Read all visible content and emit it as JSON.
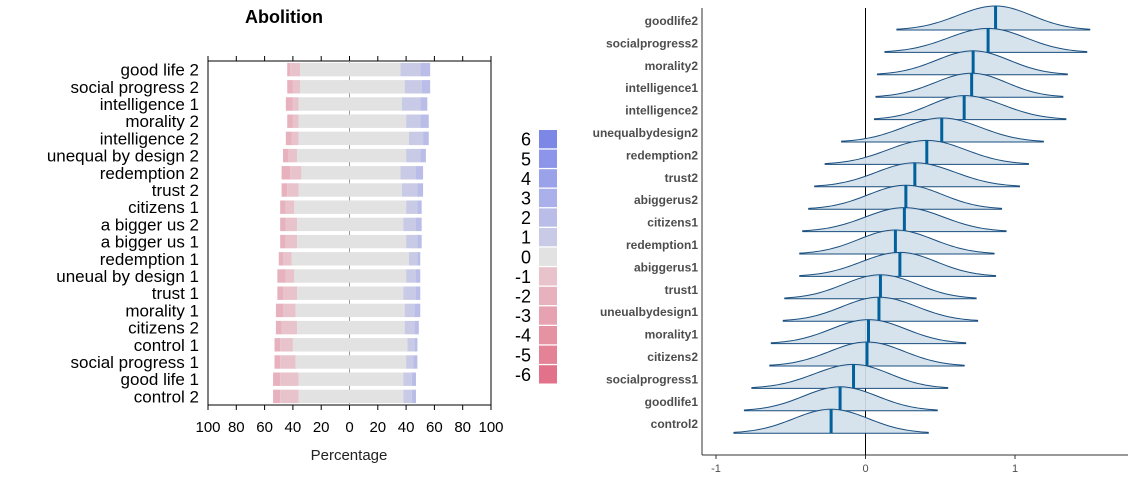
{
  "chart_data": [
    {
      "type": "bar",
      "subtype": "diverging-stacked-likert",
      "title": "Abolition",
      "xlabel": "Percentage",
      "xlim": [
        -100,
        100
      ],
      "x_tick_labels": [
        "100",
        "80",
        "60",
        "40",
        "20",
        "0",
        "20",
        "40",
        "60",
        "80",
        "100"
      ],
      "legend_position": "right",
      "legend_levels": [
        "6",
        "5",
        "4",
        "3",
        "2",
        "1",
        "0",
        "-1",
        "-2",
        "-3",
        "-4",
        "-5",
        "-6"
      ],
      "colors": {
        "neutral": "#e2e2e2",
        "pos": [
          "#c9cbe6",
          "#b9bde8",
          "#aab0ea",
          "#9aa2ea",
          "#8c95e9",
          "#7d88e6"
        ],
        "neg": [
          "#e8c3cb",
          "#e7b2bd",
          "#e6a2b0",
          "#e592a3",
          "#e48296",
          "#e2728a"
        ]
      },
      "categories": [
        "good life 2",
        "social progress 2",
        "intelligence 1",
        "morality 2",
        "intelligence 2",
        "unequal by design 2",
        "redemption 2",
        "trust 2",
        "citizens 1",
        "a bigger us 2",
        "a bigger us 1",
        "redemption 1",
        "uneual by design 1",
        "trust 1",
        "morality 1",
        "citizens 2",
        "control 1",
        "social progress 1",
        "good life 1",
        "control 2"
      ],
      "segments": [
        {
          "neg": [
            [
              -44,
              -42
            ],
            [
              -42,
              -35
            ]
          ],
          "neutral": [
            -35,
            36
          ],
          "pos": [
            [
              36,
              50
            ],
            [
              50,
              57
            ]
          ]
        },
        {
          "neg": [
            [
              -44,
              -40
            ],
            [
              -40,
              -35
            ]
          ],
          "neutral": [
            -35,
            39
          ],
          "pos": [
            [
              39,
              51
            ],
            [
              51,
              57
            ]
          ]
        },
        {
          "neg": [
            [
              -45,
              -40
            ],
            [
              -40,
              -36
            ]
          ],
          "neutral": [
            -36,
            37
          ],
          "pos": [
            [
              37,
              50
            ],
            [
              50,
              55
            ]
          ]
        },
        {
          "neg": [
            [
              -44,
              -40
            ],
            [
              -40,
              -36
            ]
          ],
          "neutral": [
            -36,
            40
          ],
          "pos": [
            [
              40,
              50
            ],
            [
              50,
              56
            ]
          ]
        },
        {
          "neg": [
            [
              -45,
              -41
            ],
            [
              -41,
              -36
            ]
          ],
          "neutral": [
            -36,
            42
          ],
          "pos": [
            [
              42,
              52
            ],
            [
              52,
              56
            ]
          ]
        },
        {
          "neg": [
            [
              -47,
              -43
            ],
            [
              -43,
              -37
            ]
          ],
          "neutral": [
            -37,
            40
          ],
          "pos": [
            [
              40,
              50
            ],
            [
              50,
              54
            ]
          ]
        },
        {
          "neg": [
            [
              -48,
              -42
            ],
            [
              -42,
              -34
            ]
          ],
          "neutral": [
            -34,
            36
          ],
          "pos": [
            [
              36,
              47
            ],
            [
              47,
              52
            ]
          ]
        },
        {
          "neg": [
            [
              -48,
              -44
            ],
            [
              -44,
              -36
            ]
          ],
          "neutral": [
            -36,
            37
          ],
          "pos": [
            [
              37,
              48
            ],
            [
              48,
              52
            ]
          ]
        },
        {
          "neg": [
            [
              -49,
              -45
            ],
            [
              -45,
              -39
            ]
          ],
          "neutral": [
            -39,
            40
          ],
          "pos": [
            [
              40,
              48
            ],
            [
              48,
              51
            ]
          ]
        },
        {
          "neg": [
            [
              -49,
              -45
            ],
            [
              -45,
              -37
            ]
          ],
          "neutral": [
            -37,
            38
          ],
          "pos": [
            [
              38,
              47
            ],
            [
              47,
              51
            ]
          ]
        },
        {
          "neg": [
            [
              -49,
              -45
            ],
            [
              -45,
              -37
            ]
          ],
          "neutral": [
            -37,
            40
          ],
          "pos": [
            [
              40,
              48
            ],
            [
              48,
              51
            ]
          ]
        },
        {
          "neg": [
            [
              -50,
              -47
            ],
            [
              -47,
              -41
            ]
          ],
          "neutral": [
            -41,
            42
          ],
          "pos": [
            [
              42,
              48
            ],
            [
              48,
              50
            ]
          ]
        },
        {
          "neg": [
            [
              -51,
              -45
            ],
            [
              -45,
              -39
            ]
          ],
          "neutral": [
            -39,
            40
          ],
          "pos": [
            [
              40,
              47
            ],
            [
              47,
              50
            ]
          ]
        },
        {
          "neg": [
            [
              -51,
              -47
            ],
            [
              -47,
              -37
            ]
          ],
          "neutral": [
            -37,
            38
          ],
          "pos": [
            [
              38,
              47
            ],
            [
              47,
              50
            ]
          ]
        },
        {
          "neg": [
            [
              -52,
              -47
            ],
            [
              -47,
              -38
            ]
          ],
          "neutral": [
            -38,
            39
          ],
          "pos": [
            [
              39,
              46
            ],
            [
              46,
              50
            ]
          ]
        },
        {
          "neg": [
            [
              -52,
              -48
            ],
            [
              -48,
              -37
            ]
          ],
          "neutral": [
            -37,
            39
          ],
          "pos": [
            [
              39,
              46
            ],
            [
              46,
              49
            ]
          ]
        },
        {
          "neg": [
            [
              -53,
              -49
            ],
            [
              -49,
              -40
            ]
          ],
          "neutral": [
            -40,
            41
          ],
          "pos": [
            [
              41,
              46
            ],
            [
              46,
              48
            ]
          ]
        },
        {
          "neg": [
            [
              -53,
              -49
            ],
            [
              -49,
              -38
            ]
          ],
          "neutral": [
            -38,
            40
          ],
          "pos": [
            [
              40,
              45
            ],
            [
              45,
              48
            ]
          ]
        },
        {
          "neg": [
            [
              -54,
              -49
            ],
            [
              -49,
              -36
            ]
          ],
          "neutral": [
            -36,
            38
          ],
          "pos": [
            [
              38,
              44
            ],
            [
              44,
              47
            ]
          ]
        },
        {
          "neg": [
            [
              -54,
              -49
            ],
            [
              -49,
              -36
            ]
          ],
          "neutral": [
            -36,
            38
          ],
          "pos": [
            [
              38,
              44
            ],
            [
              44,
              47
            ]
          ]
        }
      ]
    },
    {
      "type": "ridgeline",
      "xlim": [
        -1.1,
        1.75
      ],
      "x_ticks": [
        -1,
        0,
        1
      ],
      "x_tick_labels": [
        "-1",
        "0",
        "1"
      ],
      "vline_at": 0,
      "fill_color": "#d2e1ec",
      "line_color": "#1a4f7f",
      "median_color": "#00619c",
      "categories": [
        "goodlife2",
        "socialprogress2",
        "morality2",
        "intelligence1",
        "intelligence2",
        "unequalbydesign2",
        "redemption2",
        "trust2",
        "abiggerus2",
        "citizens1",
        "redemption1",
        "abiggerus1",
        "trust1",
        "uneualbydesign1",
        "morality1",
        "citizens2",
        "socialprogress1",
        "goodlife1",
        "control2"
      ],
      "series": [
        {
          "min": 0.21,
          "max": 1.5,
          "median": 0.87
        },
        {
          "min": 0.13,
          "max": 1.48,
          "median": 0.82
        },
        {
          "min": 0.08,
          "max": 1.35,
          "median": 0.72
        },
        {
          "min": 0.07,
          "max": 1.32,
          "median": 0.71
        },
        {
          "min": 0.06,
          "max": 1.34,
          "median": 0.66
        },
        {
          "min": -0.16,
          "max": 1.19,
          "median": 0.51
        },
        {
          "min": -0.27,
          "max": 1.09,
          "median": 0.41
        },
        {
          "min": -0.34,
          "max": 1.03,
          "median": 0.33
        },
        {
          "min": -0.38,
          "max": 0.91,
          "median": 0.27
        },
        {
          "min": -0.42,
          "max": 0.94,
          "median": 0.26
        },
        {
          "min": -0.44,
          "max": 0.86,
          "median": 0.2
        },
        {
          "min": -0.44,
          "max": 0.87,
          "median": 0.23
        },
        {
          "min": -0.54,
          "max": 0.74,
          "median": 0.1
        },
        {
          "min": -0.55,
          "max": 0.75,
          "median": 0.09
        },
        {
          "min": -0.63,
          "max": 0.67,
          "median": 0.02
        },
        {
          "min": -0.64,
          "max": 0.66,
          "median": 0.01
        },
        {
          "min": -0.76,
          "max": 0.55,
          "median": -0.08
        },
        {
          "min": -0.81,
          "max": 0.48,
          "median": -0.17
        },
        {
          "min": -0.88,
          "max": 0.42,
          "median": -0.23
        }
      ]
    }
  ]
}
